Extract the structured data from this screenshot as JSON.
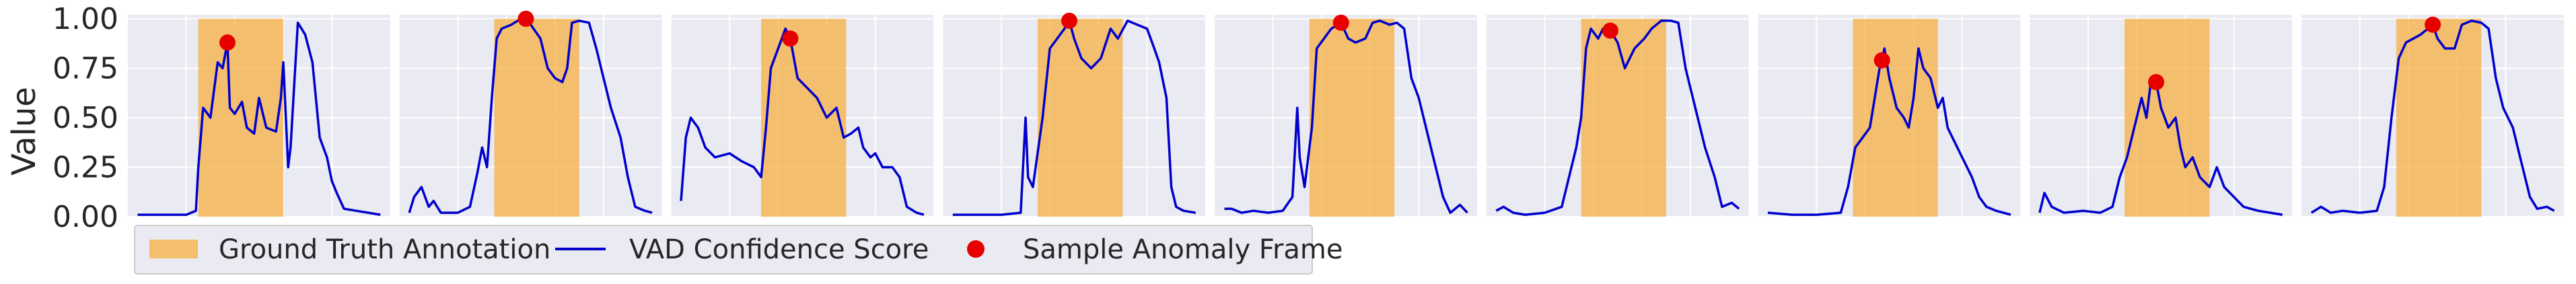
{
  "chart_data": {
    "type": "line",
    "ylabel": "Value",
    "ylim": [
      0,
      1.02
    ],
    "yticks": [
      0.0,
      0.25,
      0.5,
      0.75,
      1.0
    ],
    "ytick_labels": [
      "0.00",
      "0.25",
      "0.50",
      "0.75",
      "1.00"
    ],
    "grid": true,
    "legend": {
      "placement": "bottom-left",
      "entries": [
        {
          "key": "gt",
          "label": "Ground Truth Annotation",
          "type": "patch"
        },
        {
          "key": "vad",
          "label": "VAD Confidence Score",
          "type": "line"
        },
        {
          "key": "anom",
          "label": "Sample Anomaly Frame",
          "type": "marker"
        }
      ]
    },
    "colors": {
      "gt": "#f5b041",
      "vad": "#0000cd",
      "anom": "#e60000",
      "axes_bg": "#eaeaf2",
      "grid": "#ffffff"
    },
    "x_domain": [
      -0.04,
      1.04
    ],
    "panels": [
      {
        "gt": [
          0.25,
          0.6
        ],
        "anomaly": {
          "x": 0.37,
          "y": 0.88
        },
        "series": [
          [
            0,
            0.01
          ],
          [
            0.1,
            0.01
          ],
          [
            0.2,
            0.01
          ],
          [
            0.24,
            0.03
          ],
          [
            0.25,
            0.25
          ],
          [
            0.27,
            0.55
          ],
          [
            0.3,
            0.5
          ],
          [
            0.33,
            0.78
          ],
          [
            0.35,
            0.75
          ],
          [
            0.37,
            0.88
          ],
          [
            0.38,
            0.55
          ],
          [
            0.4,
            0.52
          ],
          [
            0.43,
            0.58
          ],
          [
            0.45,
            0.45
          ],
          [
            0.48,
            0.42
          ],
          [
            0.5,
            0.6
          ],
          [
            0.53,
            0.45
          ],
          [
            0.57,
            0.43
          ],
          [
            0.59,
            0.6
          ],
          [
            0.6,
            0.78
          ],
          [
            0.62,
            0.25
          ],
          [
            0.63,
            0.35
          ],
          [
            0.66,
            0.98
          ],
          [
            0.69,
            0.92
          ],
          [
            0.72,
            0.78
          ],
          [
            0.75,
            0.4
          ],
          [
            0.78,
            0.3
          ],
          [
            0.8,
            0.18
          ],
          [
            0.82,
            0.12
          ],
          [
            0.85,
            0.04
          ],
          [
            0.9,
            0.03
          ],
          [
            0.95,
            0.02
          ],
          [
            1.0,
            0.01
          ]
        ]
      },
      {
        "gt": [
          0.35,
          0.7
        ],
        "anomaly": {
          "x": 0.48,
          "y": 1.0
        },
        "series": [
          [
            0,
            0.02
          ],
          [
            0.02,
            0.1
          ],
          [
            0.05,
            0.15
          ],
          [
            0.08,
            0.05
          ],
          [
            0.1,
            0.08
          ],
          [
            0.13,
            0.02
          ],
          [
            0.2,
            0.02
          ],
          [
            0.25,
            0.05
          ],
          [
            0.28,
            0.22
          ],
          [
            0.3,
            0.35
          ],
          [
            0.32,
            0.25
          ],
          [
            0.34,
            0.6
          ],
          [
            0.36,
            0.9
          ],
          [
            0.38,
            0.95
          ],
          [
            0.42,
            0.97
          ],
          [
            0.46,
            1.0
          ],
          [
            0.5,
            0.97
          ],
          [
            0.54,
            0.9
          ],
          [
            0.57,
            0.75
          ],
          [
            0.6,
            0.7
          ],
          [
            0.63,
            0.68
          ],
          [
            0.65,
            0.75
          ],
          [
            0.67,
            0.98
          ],
          [
            0.7,
            0.99
          ],
          [
            0.74,
            0.98
          ],
          [
            0.77,
            0.85
          ],
          [
            0.8,
            0.7
          ],
          [
            0.83,
            0.55
          ],
          [
            0.87,
            0.4
          ],
          [
            0.9,
            0.2
          ],
          [
            0.93,
            0.05
          ],
          [
            0.97,
            0.03
          ],
          [
            1.0,
            0.02
          ]
        ]
      },
      {
        "gt": [
          0.33,
          0.68
        ],
        "anomaly": {
          "x": 0.45,
          "y": 0.9
        },
        "series": [
          [
            0,
            0.08
          ],
          [
            0.02,
            0.4
          ],
          [
            0.04,
            0.5
          ],
          [
            0.07,
            0.45
          ],
          [
            0.1,
            0.35
          ],
          [
            0.14,
            0.3
          ],
          [
            0.2,
            0.32
          ],
          [
            0.25,
            0.28
          ],
          [
            0.3,
            0.25
          ],
          [
            0.33,
            0.2
          ],
          [
            0.35,
            0.45
          ],
          [
            0.37,
            0.75
          ],
          [
            0.4,
            0.85
          ],
          [
            0.43,
            0.95
          ],
          [
            0.45,
            0.9
          ],
          [
            0.48,
            0.7
          ],
          [
            0.52,
            0.65
          ],
          [
            0.56,
            0.6
          ],
          [
            0.6,
            0.5
          ],
          [
            0.64,
            0.55
          ],
          [
            0.67,
            0.4
          ],
          [
            0.7,
            0.42
          ],
          [
            0.73,
            0.45
          ],
          [
            0.75,
            0.35
          ],
          [
            0.78,
            0.3
          ],
          [
            0.8,
            0.32
          ],
          [
            0.83,
            0.25
          ],
          [
            0.87,
            0.25
          ],
          [
            0.9,
            0.2
          ],
          [
            0.93,
            0.05
          ],
          [
            0.97,
            0.02
          ],
          [
            1.0,
            0.01
          ]
        ]
      },
      {
        "gt": [
          0.35,
          0.7
        ],
        "anomaly": {
          "x": 0.48,
          "y": 0.99
        },
        "series": [
          [
            0,
            0.01
          ],
          [
            0.1,
            0.01
          ],
          [
            0.2,
            0.01
          ],
          [
            0.28,
            0.02
          ],
          [
            0.3,
            0.5
          ],
          [
            0.31,
            0.2
          ],
          [
            0.33,
            0.15
          ],
          [
            0.37,
            0.5
          ],
          [
            0.4,
            0.85
          ],
          [
            0.43,
            0.9
          ],
          [
            0.46,
            0.95
          ],
          [
            0.48,
            0.99
          ],
          [
            0.5,
            0.9
          ],
          [
            0.53,
            0.8
          ],
          [
            0.57,
            0.75
          ],
          [
            0.61,
            0.8
          ],
          [
            0.65,
            0.95
          ],
          [
            0.68,
            0.9
          ],
          [
            0.72,
            0.99
          ],
          [
            0.76,
            0.97
          ],
          [
            0.8,
            0.95
          ],
          [
            0.83,
            0.85
          ],
          [
            0.85,
            0.78
          ],
          [
            0.88,
            0.6
          ],
          [
            0.9,
            0.15
          ],
          [
            0.92,
            0.05
          ],
          [
            0.95,
            0.03
          ],
          [
            1.0,
            0.02
          ]
        ]
      },
      {
        "gt": [
          0.35,
          0.7
        ],
        "anomaly": {
          "x": 0.48,
          "y": 0.98
        },
        "series": [
          [
            0,
            0.04
          ],
          [
            0.03,
            0.04
          ],
          [
            0.07,
            0.02
          ],
          [
            0.12,
            0.03
          ],
          [
            0.18,
            0.02
          ],
          [
            0.24,
            0.03
          ],
          [
            0.28,
            0.1
          ],
          [
            0.3,
            0.55
          ],
          [
            0.31,
            0.3
          ],
          [
            0.33,
            0.15
          ],
          [
            0.36,
            0.45
          ],
          [
            0.38,
            0.85
          ],
          [
            0.41,
            0.9
          ],
          [
            0.44,
            0.95
          ],
          [
            0.48,
            0.98
          ],
          [
            0.51,
            0.9
          ],
          [
            0.54,
            0.88
          ],
          [
            0.58,
            0.9
          ],
          [
            0.61,
            0.98
          ],
          [
            0.64,
            0.99
          ],
          [
            0.68,
            0.97
          ],
          [
            0.71,
            0.98
          ],
          [
            0.74,
            0.95
          ],
          [
            0.77,
            0.7
          ],
          [
            0.8,
            0.6
          ],
          [
            0.83,
            0.45
          ],
          [
            0.86,
            0.3
          ],
          [
            0.9,
            0.1
          ],
          [
            0.93,
            0.02
          ],
          [
            0.97,
            0.06
          ],
          [
            1.0,
            0.02
          ]
        ]
      },
      {
        "gt": [
          0.35,
          0.7
        ],
        "anomaly": {
          "x": 0.47,
          "y": 0.94
        },
        "series": [
          [
            0,
            0.03
          ],
          [
            0.03,
            0.05
          ],
          [
            0.07,
            0.02
          ],
          [
            0.12,
            0.01
          ],
          [
            0.2,
            0.02
          ],
          [
            0.27,
            0.05
          ],
          [
            0.3,
            0.2
          ],
          [
            0.33,
            0.35
          ],
          [
            0.35,
            0.5
          ],
          [
            0.37,
            0.85
          ],
          [
            0.39,
            0.95
          ],
          [
            0.42,
            0.9
          ],
          [
            0.44,
            0.95
          ],
          [
            0.47,
            0.94
          ],
          [
            0.5,
            0.88
          ],
          [
            0.53,
            0.75
          ],
          [
            0.57,
            0.85
          ],
          [
            0.61,
            0.9
          ],
          [
            0.64,
            0.95
          ],
          [
            0.68,
            0.99
          ],
          [
            0.72,
            0.99
          ],
          [
            0.75,
            0.98
          ],
          [
            0.78,
            0.75
          ],
          [
            0.8,
            0.65
          ],
          [
            0.83,
            0.5
          ],
          [
            0.86,
            0.35
          ],
          [
            0.9,
            0.2
          ],
          [
            0.93,
            0.05
          ],
          [
            0.97,
            0.07
          ],
          [
            1.0,
            0.04
          ]
        ]
      },
      {
        "gt": [
          0.35,
          0.7
        ],
        "anomaly": {
          "x": 0.47,
          "y": 0.79
        },
        "series": [
          [
            0,
            0.02
          ],
          [
            0.1,
            0.01
          ],
          [
            0.2,
            0.01
          ],
          [
            0.3,
            0.02
          ],
          [
            0.33,
            0.15
          ],
          [
            0.36,
            0.35
          ],
          [
            0.39,
            0.4
          ],
          [
            0.42,
            0.45
          ],
          [
            0.44,
            0.6
          ],
          [
            0.46,
            0.75
          ],
          [
            0.47,
            0.79
          ],
          [
            0.48,
            0.85
          ],
          [
            0.5,
            0.7
          ],
          [
            0.53,
            0.55
          ],
          [
            0.56,
            0.5
          ],
          [
            0.58,
            0.45
          ],
          [
            0.6,
            0.6
          ],
          [
            0.62,
            0.85
          ],
          [
            0.64,
            0.75
          ],
          [
            0.67,
            0.7
          ],
          [
            0.7,
            0.55
          ],
          [
            0.72,
            0.6
          ],
          [
            0.74,
            0.45
          ],
          [
            0.76,
            0.4
          ],
          [
            0.8,
            0.3
          ],
          [
            0.84,
            0.2
          ],
          [
            0.87,
            0.1
          ],
          [
            0.9,
            0.05
          ],
          [
            0.94,
            0.03
          ],
          [
            1.0,
            0.01
          ]
        ]
      },
      {
        "gt": [
          0.35,
          0.7
        ],
        "anomaly": {
          "x": 0.48,
          "y": 0.68
        },
        "series": [
          [
            0,
            0.02
          ],
          [
            0.02,
            0.12
          ],
          [
            0.05,
            0.05
          ],
          [
            0.1,
            0.02
          ],
          [
            0.18,
            0.03
          ],
          [
            0.25,
            0.02
          ],
          [
            0.3,
            0.05
          ],
          [
            0.33,
            0.2
          ],
          [
            0.36,
            0.3
          ],
          [
            0.39,
            0.45
          ],
          [
            0.42,
            0.6
          ],
          [
            0.44,
            0.5
          ],
          [
            0.46,
            0.7
          ],
          [
            0.48,
            0.68
          ],
          [
            0.5,
            0.55
          ],
          [
            0.53,
            0.45
          ],
          [
            0.56,
            0.5
          ],
          [
            0.58,
            0.35
          ],
          [
            0.6,
            0.25
          ],
          [
            0.63,
            0.3
          ],
          [
            0.66,
            0.2
          ],
          [
            0.7,
            0.15
          ],
          [
            0.73,
            0.25
          ],
          [
            0.76,
            0.15
          ],
          [
            0.8,
            0.1
          ],
          [
            0.84,
            0.05
          ],
          [
            0.9,
            0.03
          ],
          [
            0.95,
            0.02
          ],
          [
            1.0,
            0.01
          ]
        ]
      },
      {
        "gt": [
          0.35,
          0.7
        ],
        "anomaly": {
          "x": 0.5,
          "y": 0.97
        },
        "series": [
          [
            0,
            0.02
          ],
          [
            0.04,
            0.05
          ],
          [
            0.08,
            0.02
          ],
          [
            0.13,
            0.03
          ],
          [
            0.2,
            0.02
          ],
          [
            0.27,
            0.03
          ],
          [
            0.3,
            0.15
          ],
          [
            0.33,
            0.5
          ],
          [
            0.36,
            0.8
          ],
          [
            0.39,
            0.88
          ],
          [
            0.42,
            0.9
          ],
          [
            0.45,
            0.92
          ],
          [
            0.48,
            0.95
          ],
          [
            0.5,
            0.97
          ],
          [
            0.52,
            0.9
          ],
          [
            0.55,
            0.85
          ],
          [
            0.59,
            0.85
          ],
          [
            0.62,
            0.97
          ],
          [
            0.66,
            0.99
          ],
          [
            0.7,
            0.98
          ],
          [
            0.73,
            0.95
          ],
          [
            0.76,
            0.7
          ],
          [
            0.79,
            0.55
          ],
          [
            0.83,
            0.45
          ],
          [
            0.86,
            0.3
          ],
          [
            0.9,
            0.1
          ],
          [
            0.93,
            0.04
          ],
          [
            0.97,
            0.05
          ],
          [
            1.0,
            0.03
          ]
        ]
      }
    ]
  }
}
